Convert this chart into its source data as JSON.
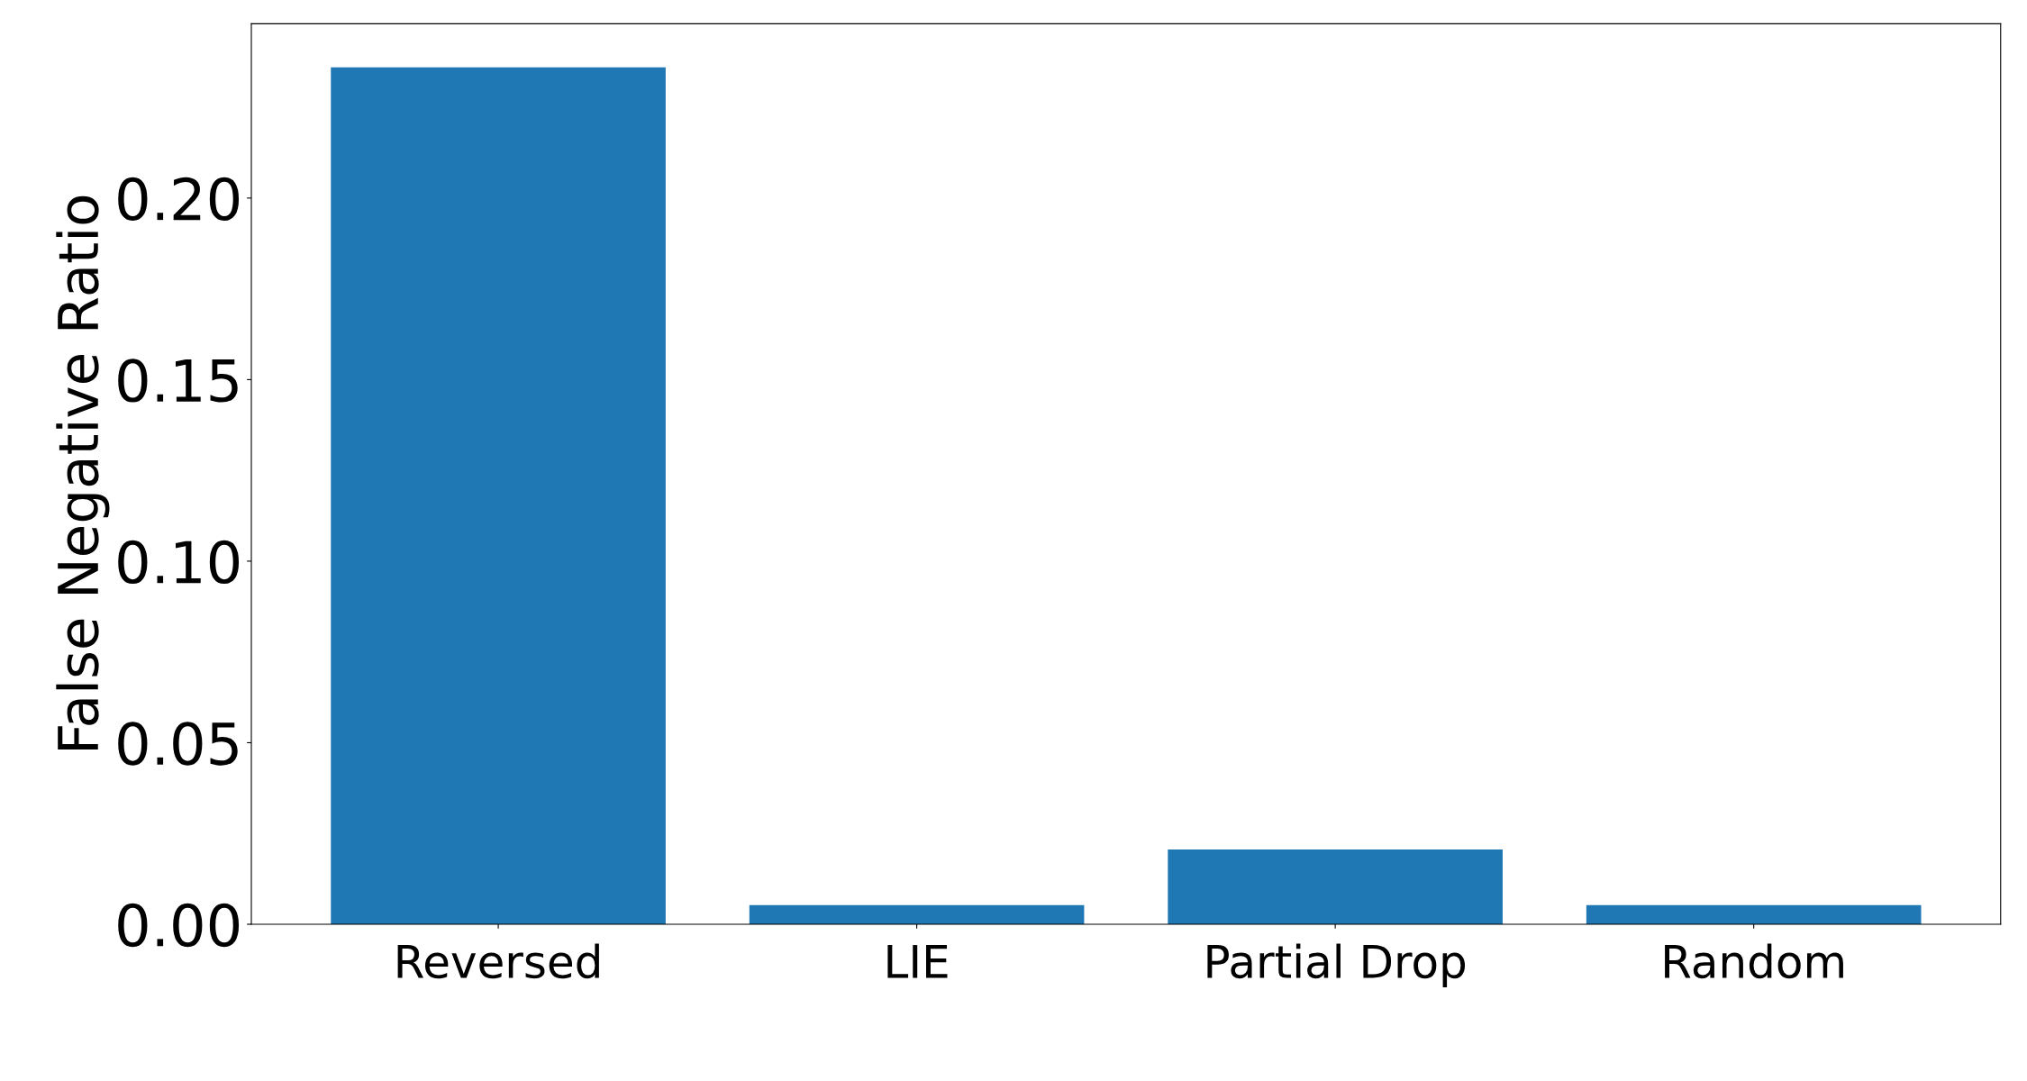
{
  "chart_data": {
    "type": "bar",
    "ylabel": "False Negative Ratio",
    "categories": [
      "Reversed",
      "LIE",
      "Partial Drop",
      "Random"
    ],
    "values": [
      0.236,
      0.0053,
      0.0206,
      0.0053
    ],
    "color": "#1f77b4",
    "ylim": [
      0,
      0.248
    ],
    "yticks": [
      {
        "value": 0,
        "label": "0.00"
      },
      {
        "value": 0.05,
        "label": "0.05"
      },
      {
        "value": 0.1,
        "label": "0.10"
      },
      {
        "value": 0.15,
        "label": "0.15"
      },
      {
        "value": 0.2,
        "label": "0.20"
      }
    ],
    "grid": false
  }
}
